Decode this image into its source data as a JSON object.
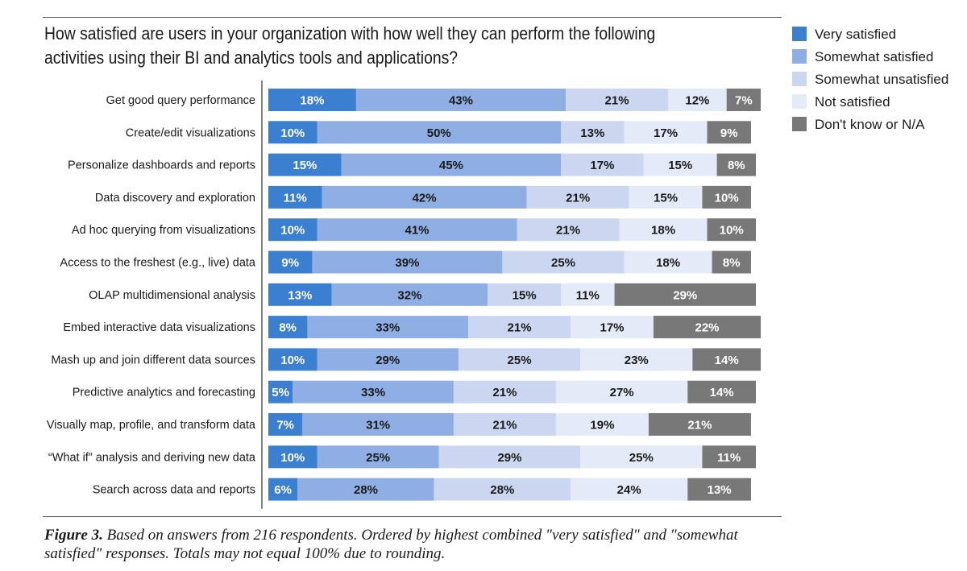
{
  "colors": {
    "very_satisfied": "#3a7fd0",
    "somewhat_satisfied": "#8faee3",
    "somewhat_unsatisfied": "#cbd7f1",
    "not_satisfied": "#e5eaf8",
    "dont_know": "#787878"
  },
  "chart_data": {
    "type": "bar",
    "orientation": "horizontal-stacked",
    "title": "How satisfied are users in your organization with how well they can perform the following activities using their BI and analytics tools and applications?",
    "title_lines": [
      "How satisfied are users in your organization with how well they can perform the following",
      "activities using their BI and analytics tools and applications?"
    ],
    "unit": "%",
    "legend_position": "top-right",
    "categories": [
      "Get good query performance",
      "Create/edit visualizations",
      "Personalize dashboards and reports",
      "Data discovery and exploration",
      "Ad hoc querying from visualizations",
      "Access to the freshest (e.g., live) data",
      "OLAP multidimensional analysis",
      "Embed interactive data visualizations",
      "Mash up and join different data sources",
      "Predictive analytics and forecasting",
      "Visually map, profile, and transform data",
      "“What if” analysis and deriving new data",
      "Search across data and reports"
    ],
    "series": [
      {
        "name": "Very satisfied",
        "color_key": "very_satisfied",
        "values": [
          18,
          10,
          15,
          11,
          10,
          9,
          13,
          8,
          10,
          5,
          7,
          10,
          6
        ]
      },
      {
        "name": "Somewhat satisfied",
        "color_key": "somewhat_satisfied",
        "values": [
          43,
          50,
          45,
          42,
          41,
          39,
          32,
          33,
          29,
          33,
          31,
          25,
          28
        ]
      },
      {
        "name": "Somewhat unsatisfied",
        "color_key": "somewhat_unsatisfied",
        "values": [
          21,
          13,
          17,
          21,
          21,
          25,
          15,
          21,
          25,
          21,
          21,
          29,
          28
        ]
      },
      {
        "name": "Not satisfied",
        "color_key": "not_satisfied",
        "values": [
          12,
          17,
          15,
          15,
          18,
          18,
          11,
          17,
          23,
          27,
          19,
          25,
          24
        ]
      },
      {
        "name": "Don't know or N/A",
        "color_key": "dont_know",
        "values": [
          7,
          9,
          8,
          10,
          10,
          8,
          29,
          22,
          14,
          14,
          21,
          11,
          13
        ]
      }
    ],
    "xlim": [
      0,
      100
    ]
  },
  "caption": {
    "figure_label": "Figure 3.",
    "text": " Based on answers from 216 respondents. Ordered by highest combined \"very satisfied\" and \"somewhat satisfied\" responses. Totals may not equal 100% due to rounding."
  }
}
